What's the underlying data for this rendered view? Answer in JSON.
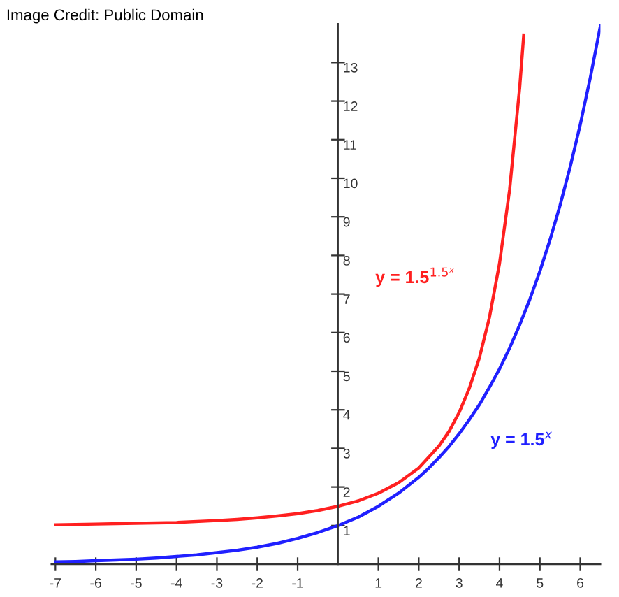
{
  "chart_data": {
    "type": "line",
    "annotations": [
      "Image Credit: Public Domain"
    ],
    "xlim": [
      -7.1,
      6.5
    ],
    "ylim": [
      0,
      14
    ],
    "xticks": [
      -7,
      -6,
      -5,
      -4,
      -3,
      -2,
      -1,
      1,
      2,
      3,
      4,
      5,
      6
    ],
    "yticks": [
      1,
      2,
      3,
      4,
      5,
      6,
      7,
      8,
      9,
      10,
      11,
      12,
      13
    ],
    "grid": false,
    "legend": false,
    "marker": "none",
    "line_style": "solid",
    "series": [
      {
        "name": "y = 1.5$^{1.5ˣ}$",
        "color": "#ff2020",
        "x": [
          -7,
          -6,
          -5,
          -4,
          -3,
          -2.5,
          -2,
          -1.5,
          -1,
          -0.5,
          0,
          0.5,
          1,
          1.5,
          2,
          2.5,
          2.75,
          3,
          3.25,
          3.5,
          3.75,
          4,
          4.25,
          4.5,
          4.6
        ],
        "values": [
          1.02,
          1.04,
          1.06,
          1.08,
          1.13,
          1.16,
          1.2,
          1.25,
          1.31,
          1.39,
          1.5,
          1.64,
          1.84,
          2.11,
          2.49,
          3.06,
          3.44,
          3.93,
          4.55,
          5.34,
          6.39,
          7.79,
          9.7,
          12.35,
          13.71
        ]
      },
      {
        "name": "y = 1.5$^{x}$",
        "color": "#2020ff",
        "x": [
          -7,
          -6.5,
          -6,
          -5.5,
          -5,
          -4.5,
          -4,
          -3.5,
          -3,
          -2.5,
          -2,
          -1.5,
          -1,
          -0.5,
          0,
          0.5,
          1,
          1.5,
          2,
          2.25,
          2.5,
          2.75,
          3,
          3.25,
          3.5,
          3.75,
          4,
          4.25,
          4.5,
          4.75,
          5,
          5.25,
          5.5,
          5.75,
          6,
          6.25,
          6.5
        ],
        "values": [
          0.06,
          0.07,
          0.09,
          0.11,
          0.13,
          0.16,
          0.2,
          0.24,
          0.3,
          0.36,
          0.44,
          0.54,
          0.67,
          0.82,
          1,
          1.22,
          1.5,
          1.84,
          2.25,
          2.49,
          2.76,
          3.05,
          3.38,
          3.74,
          4.13,
          4.58,
          5.06,
          5.6,
          6.2,
          6.86,
          7.59,
          8.4,
          9.3,
          10.29,
          11.39,
          12.61,
          13.95
        ]
      }
    ]
  }
}
